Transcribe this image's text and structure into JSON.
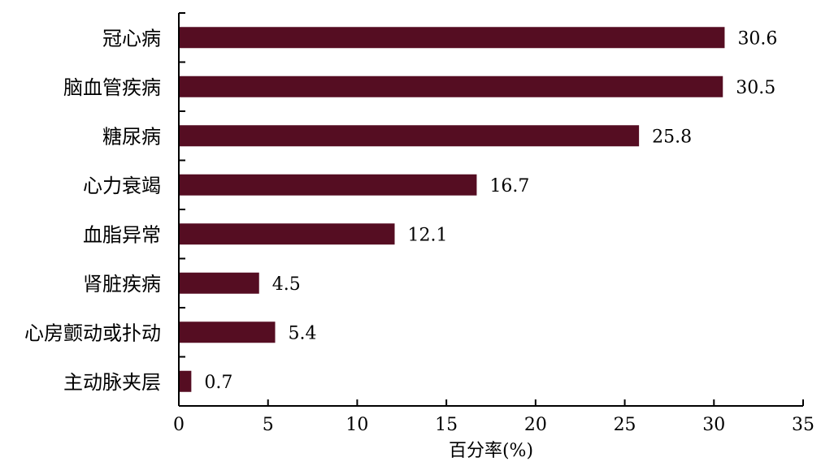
{
  "chart_data": {
    "type": "bar",
    "orientation": "horizontal",
    "categories": [
      "冠心病",
      "脑血管疾病",
      "糖尿病",
      "心力衰竭",
      "血脂异常",
      "肾脏疾病",
      "心房颤动或扑动",
      "主动脉夹层"
    ],
    "values": [
      30.6,
      30.5,
      25.8,
      16.7,
      12.1,
      4.5,
      5.4,
      0.7
    ],
    "data_labels": [
      "30.6",
      "30.5",
      "25.8",
      "16.7",
      "12.1",
      "4.5",
      "5.4",
      "0.7"
    ],
    "xlabel": "百分率(%)",
    "ylabel": "",
    "title": "",
    "xlim": [
      0,
      35
    ],
    "xticks": [
      "0",
      "5",
      "10",
      "15",
      "20",
      "25",
      "30",
      "35"
    ],
    "grid": false,
    "legend": "none",
    "bar_color": "#550d22"
  }
}
